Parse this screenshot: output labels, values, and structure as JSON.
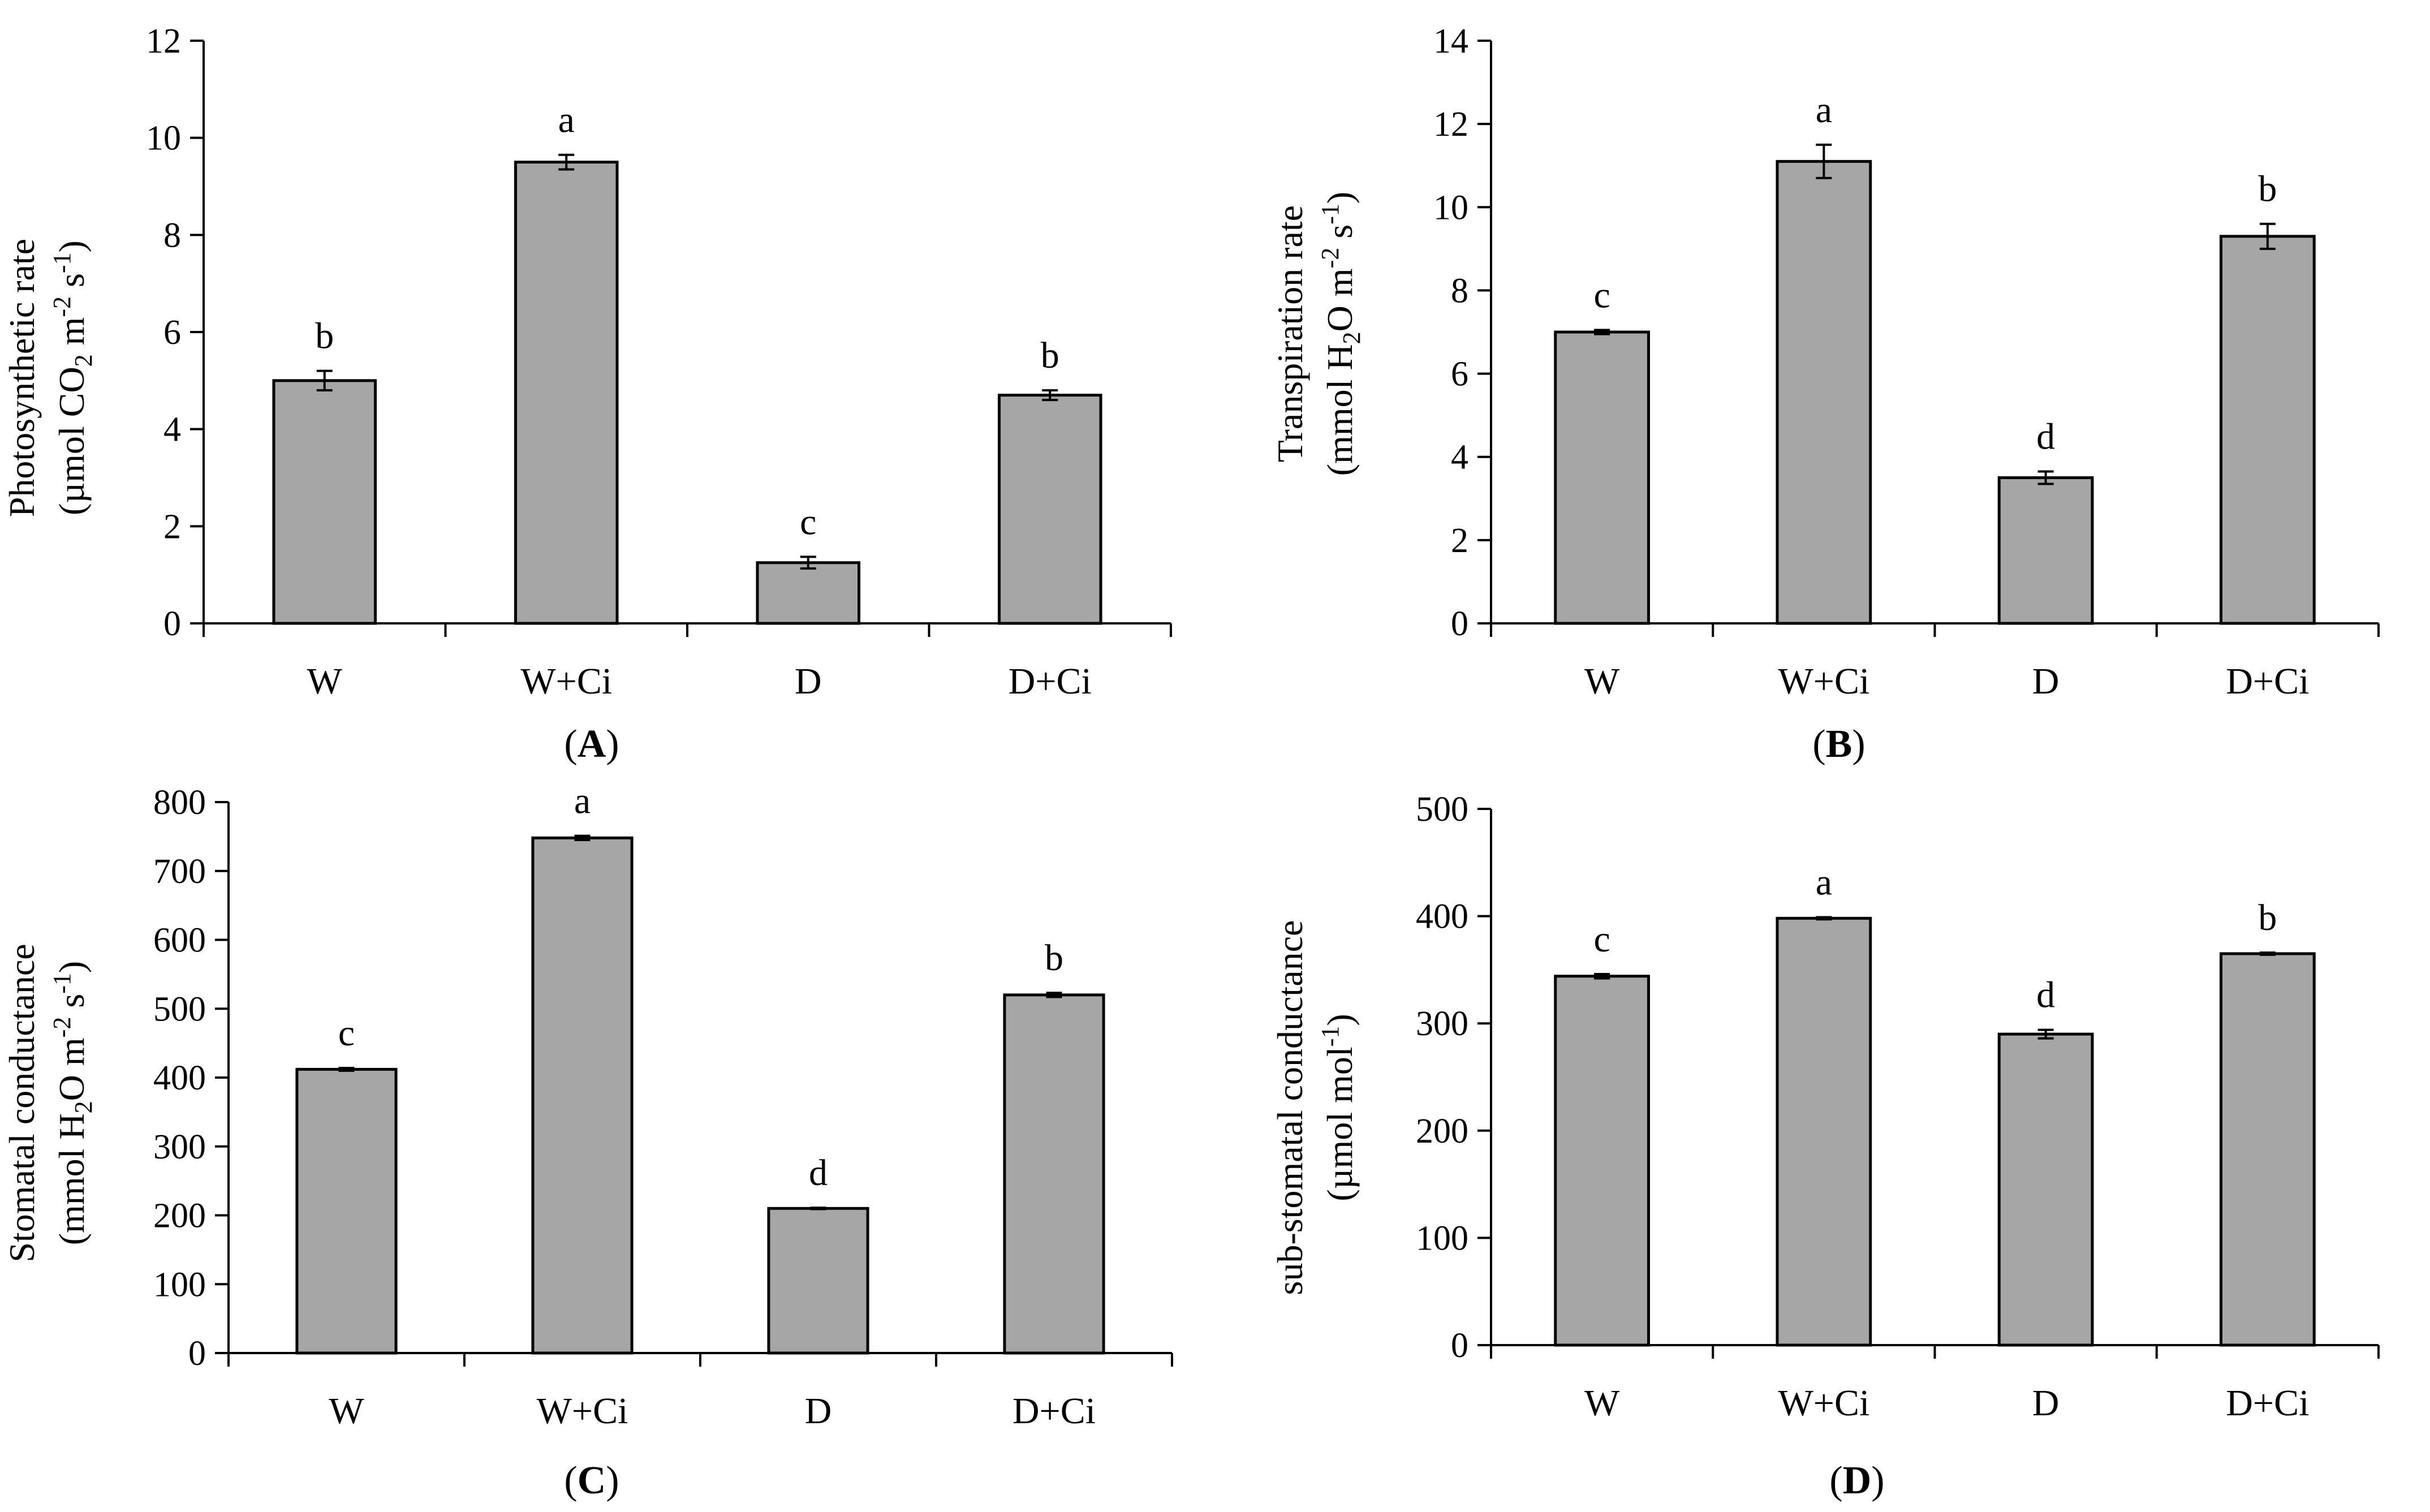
{
  "figure": {
    "bar_color": "#a6a6a6",
    "line_color": "#000000"
  },
  "chart_data": [
    {
      "type": "bar",
      "panel_letter": "A",
      "categories": [
        "W",
        "W+Ci",
        "D",
        "D+Ci"
      ],
      "values": [
        5.0,
        9.5,
        1.25,
        4.7
      ],
      "errors": [
        0.2,
        0.15,
        0.12,
        0.1
      ],
      "significance": [
        "b",
        "a",
        "c",
        "b"
      ],
      "ylabel_line1": "Photosynthetic rate",
      "ylabel_line2": {
        "a": "(µmol CO",
        "b": "2",
        "c": " m",
        "d": "-2",
        "e": " s",
        "f": "-1",
        "g": ")"
      },
      "ylim": [
        0,
        12
      ],
      "yticks": [
        0,
        2,
        4,
        6,
        8,
        10,
        12
      ]
    },
    {
      "type": "bar",
      "panel_letter": "B",
      "categories": [
        "W",
        "W+Ci",
        "D",
        "D+Ci"
      ],
      "values": [
        7.0,
        11.1,
        3.5,
        9.3
      ],
      "errors": [
        0.05,
        0.4,
        0.15,
        0.3
      ],
      "significance": [
        "c",
        "a",
        "d",
        "b"
      ],
      "ylabel_line1": "Transpiration rate",
      "ylabel_line2": {
        "a": "(mmol H",
        "b": "2",
        "c": "O m",
        "d": "-2",
        "e": " s",
        "f": "-1",
        "g": ")"
      },
      "ylim": [
        0,
        14
      ],
      "yticks": [
        0,
        2,
        4,
        6,
        8,
        10,
        12,
        14
      ]
    },
    {
      "type": "bar",
      "panel_letter": "C",
      "categories": [
        "W",
        "W+Ci",
        "D",
        "D+Ci"
      ],
      "values": [
        412,
        748,
        210,
        520
      ],
      "errors": [
        2,
        3,
        1,
        3
      ],
      "significance": [
        "c",
        "a",
        "d",
        "b"
      ],
      "ylabel_line1": "Stomatal conductance",
      "ylabel_line2": {
        "a": "(mmol H",
        "b": "2",
        "c": "O m",
        "d": "-2",
        "e": " s",
        "f": "-1",
        "g": ")"
      },
      "ylim": [
        0,
        800
      ],
      "yticks": [
        0,
        100,
        200,
        300,
        400,
        500,
        600,
        700,
        800
      ]
    },
    {
      "type": "bar",
      "panel_letter": "D",
      "categories": [
        "W",
        "W+Ci",
        "D",
        "D+Ci"
      ],
      "values": [
        344,
        398,
        290,
        365
      ],
      "errors": [
        2,
        1,
        4,
        1
      ],
      "significance": [
        "c",
        "a",
        "d",
        "b"
      ],
      "ylabel_line1": "sub-stomatal conductance",
      "ylabel_line2": {
        "a": "(µmol mol",
        "b": "",
        "c": "",
        "d": "",
        "e": "",
        "f": "-1",
        "g": ")"
      },
      "ylim": [
        0,
        500
      ],
      "yticks": [
        0,
        100,
        200,
        300,
        400,
        500
      ]
    }
  ]
}
